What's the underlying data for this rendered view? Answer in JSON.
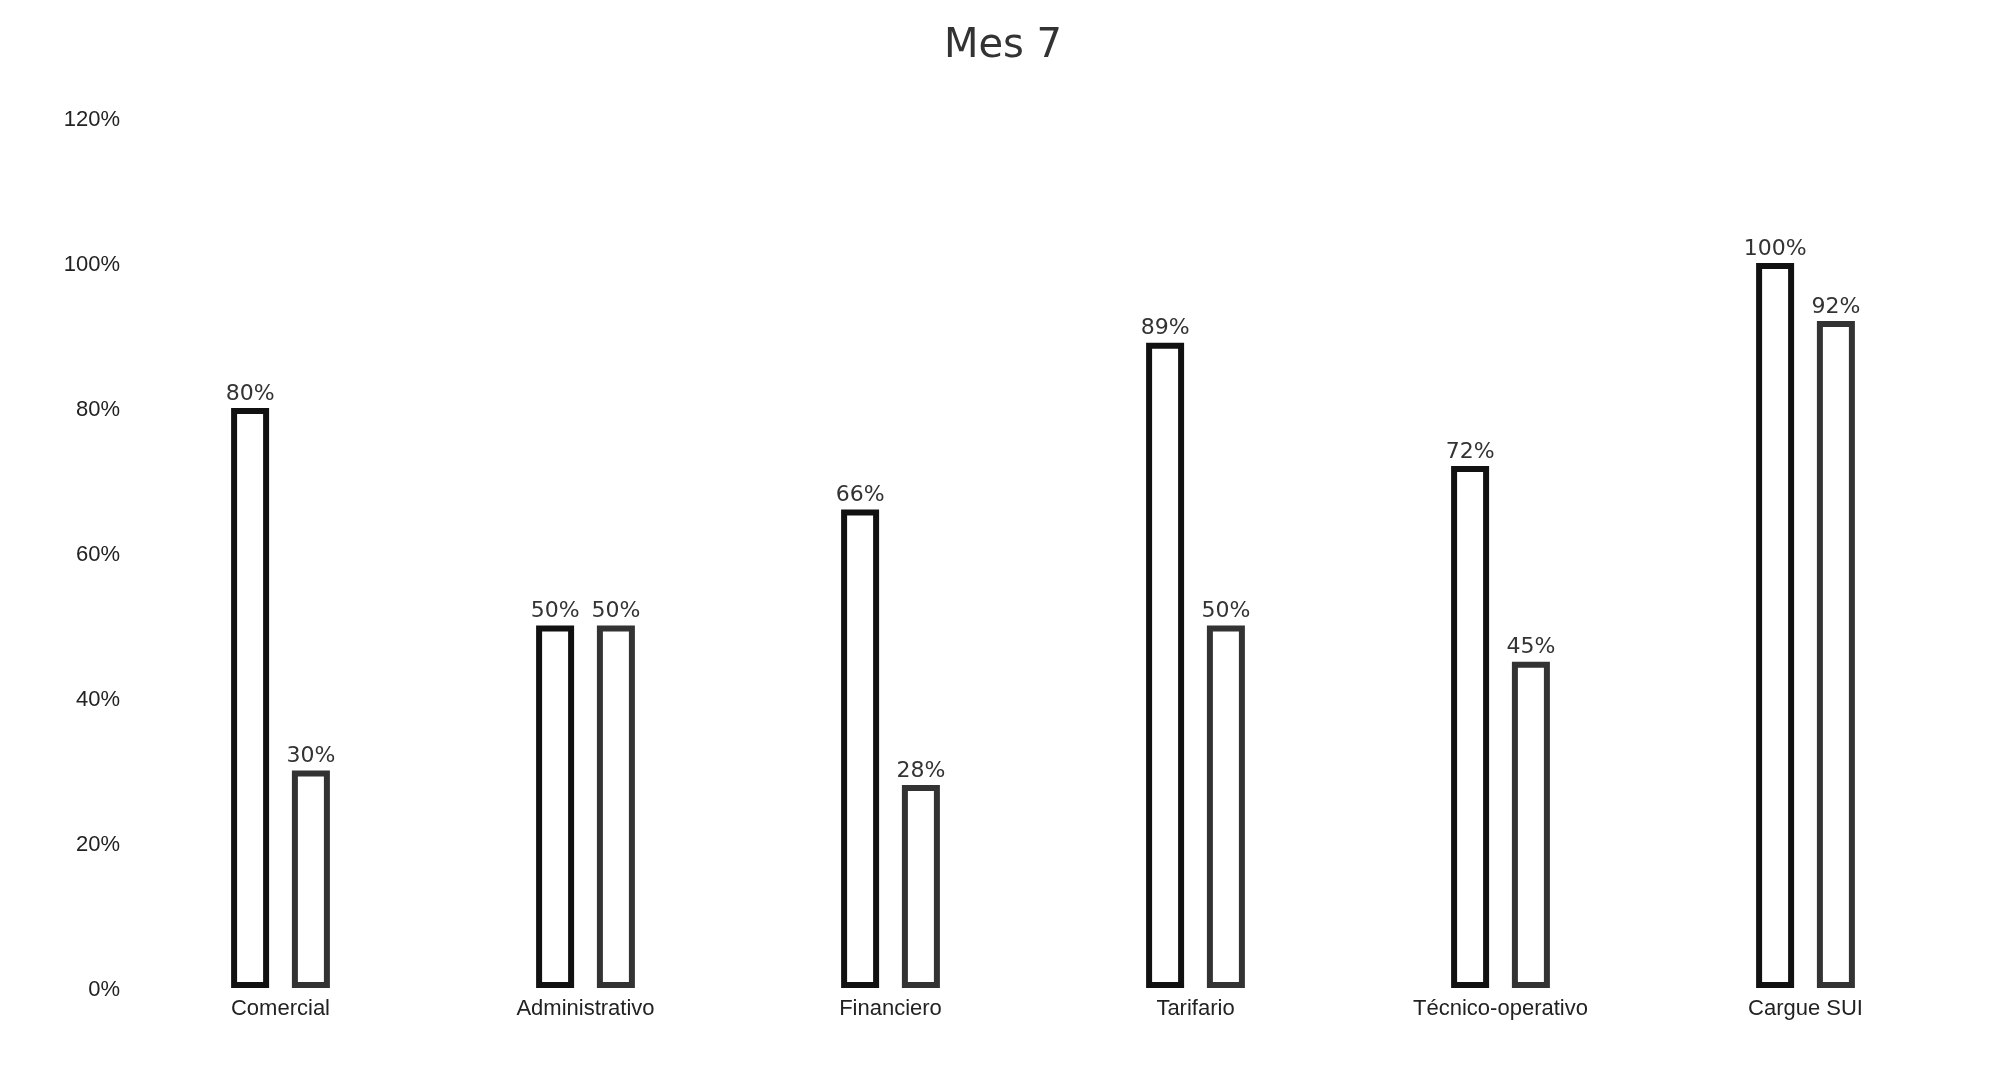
{
  "chart_data": {
    "type": "bar",
    "title": "Mes 7",
    "categories": [
      "Comercial",
      "Administrativo",
      "Financiero",
      "Tarifario",
      "Técnico-operativo",
      "Cargue SUI"
    ],
    "series": [
      {
        "color": "#111111",
        "values": [
          80,
          50,
          66,
          89,
          72,
          100
        ],
        "value_labels": [
          "80%",
          "50%",
          "66%",
          "89%",
          "72%",
          "100%"
        ]
      },
      {
        "color": "#333333",
        "values": [
          30,
          50,
          28,
          50,
          45,
          92
        ],
        "value_labels": [
          "30%",
          "50%",
          "28%",
          "50%",
          "45%",
          "92%"
        ]
      }
    ],
    "ylim": [
      0,
      120
    ],
    "yticks": [
      {
        "value": 0,
        "label": "0%"
      },
      {
        "value": 20,
        "label": "20%"
      },
      {
        "value": 40,
        "label": "40%"
      },
      {
        "value": 60,
        "label": "60%"
      },
      {
        "value": 80,
        "label": "80%"
      },
      {
        "value": 100,
        "label": "100%"
      },
      {
        "value": 120,
        "label": "120%"
      }
    ],
    "grid": false
  }
}
